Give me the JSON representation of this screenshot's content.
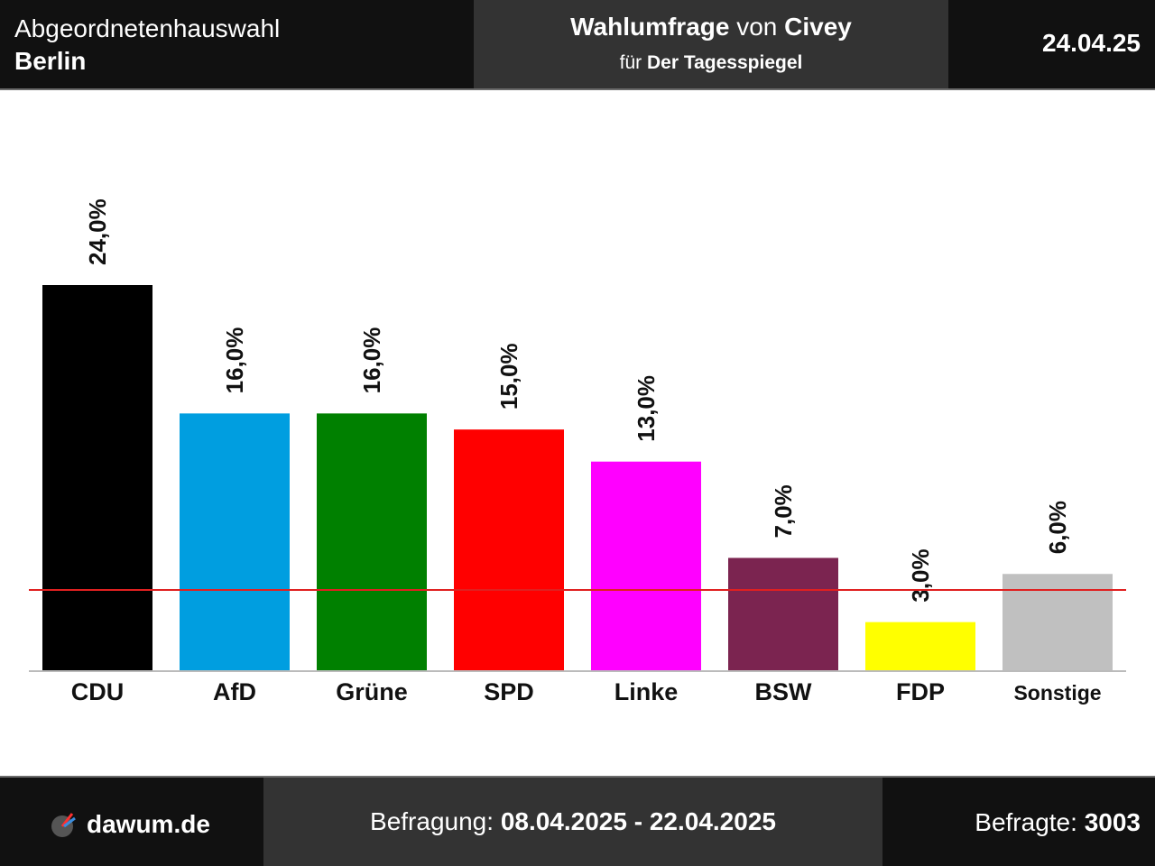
{
  "header": {
    "election_line1": "Abgeordnetenhauswahl",
    "election_line2": "Berlin",
    "poll_label": "Wahlumfrage",
    "poll_von": "von",
    "institute": "Civey",
    "for_label": "für",
    "client": "Der Tagesspiegel",
    "date": "24.04.25"
  },
  "footer": {
    "site": "dawum.de",
    "period_label": "Befragung:",
    "period_value": "08.04.2025 - 22.04.2025",
    "respondents_label": "Befragte:",
    "respondents_value": "3003"
  },
  "chart_data": {
    "type": "bar",
    "categories": [
      "CDU",
      "AfD",
      "Grüne",
      "SPD",
      "Linke",
      "BSW",
      "FDP",
      "Sonstige"
    ],
    "values": [
      24.0,
      16.0,
      16.0,
      15.0,
      13.0,
      7.0,
      3.0,
      6.0
    ],
    "value_labels": [
      "24,0%",
      "16,0%",
      "16,0%",
      "15,0%",
      "13,0%",
      "7,0%",
      "3,0%",
      "6,0%"
    ],
    "colors": [
      "#000000",
      "#009ee0",
      "#008000",
      "#ff0000",
      "#ff00ff",
      "#7b2450",
      "#ffff00",
      "#c0c0c0"
    ],
    "threshold": 5.0,
    "threshold_color": "#e02020",
    "ylim": [
      0,
      24.0
    ],
    "grid": false,
    "legend": "none"
  }
}
